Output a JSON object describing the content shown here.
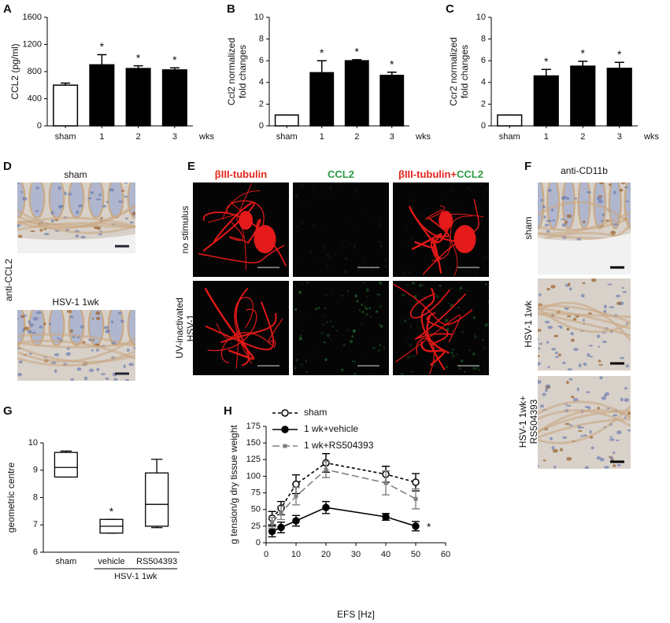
{
  "chart_data": [
    {
      "type": "bar",
      "panel": "A",
      "y_label": [
        "CCL2 (pg/ml)"
      ],
      "categories": [
        "sham",
        "1",
        "2",
        "3"
      ],
      "x_unit": "wks",
      "values": [
        600,
        900,
        845,
        825
      ],
      "errors": [
        30,
        150,
        40,
        30
      ],
      "colors": [
        "#ffffff",
        "#000000",
        "#000000",
        "#000000"
      ],
      "markers": [
        null,
        "*",
        "*",
        "*"
      ],
      "ylim": [
        0,
        1600
      ],
      "yticks": [
        0,
        400,
        800,
        1200,
        1600
      ]
    },
    {
      "type": "bar",
      "panel": "B",
      "y_label": [
        "Ccl2 normalized",
        "fold changes"
      ],
      "categories": [
        "sham",
        "1",
        "2",
        "3"
      ],
      "x_unit": "wks",
      "values": [
        1,
        4.9,
        6.0,
        4.65
      ],
      "errors": [
        0,
        1.1,
        0.1,
        0.3
      ],
      "colors": [
        "#ffffff",
        "#000000",
        "#000000",
        "#000000"
      ],
      "markers": [
        null,
        "*",
        "*",
        "*"
      ],
      "ylim": [
        0,
        10
      ],
      "yticks": [
        0,
        2,
        4,
        6,
        8,
        10
      ]
    },
    {
      "type": "bar",
      "panel": "C",
      "y_label": [
        "Ccr2 normalized",
        "fold changes"
      ],
      "categories": [
        "sham",
        "1",
        "2",
        "3"
      ],
      "x_unit": "wks",
      "values": [
        1,
        4.6,
        5.5,
        5.3
      ],
      "errors": [
        0,
        0.6,
        0.45,
        0.55
      ],
      "colors": [
        "#ffffff",
        "#000000",
        "#000000",
        "#000000"
      ],
      "markers": [
        null,
        "*",
        "*",
        "*"
      ],
      "ylim": [
        0,
        10
      ],
      "yticks": [
        0,
        2,
        4,
        6,
        8,
        10
      ]
    },
    {
      "type": "box",
      "panel": "G",
      "y_label": [
        "geometric centre"
      ],
      "categories": [
        "sham",
        "vehicle",
        "RS504393"
      ],
      "x_group_label": "HSV-1 1wk",
      "min": [
        8.75,
        6.7,
        6.9
      ],
      "q1": [
        8.75,
        6.7,
        6.95
      ],
      "median": [
        9.1,
        6.95,
        7.75
      ],
      "q3": [
        9.65,
        7.2,
        8.9
      ],
      "max": [
        9.7,
        7.2,
        9.4
      ],
      "markers": [
        null,
        "*",
        null
      ],
      "ylim": [
        6,
        10
      ],
      "yticks": [
        6,
        7,
        8,
        9,
        10
      ]
    },
    {
      "type": "line",
      "panel": "H",
      "y_label": [
        "g tension/g dry tissue weight"
      ],
      "x_label": "EFS [Hz]",
      "x": [
        2,
        5,
        10,
        20,
        40,
        50
      ],
      "xlim": [
        0,
        60
      ],
      "xticks": [
        0,
        10,
        20,
        30,
        40,
        50,
        60
      ],
      "ylim": [
        0,
        175
      ],
      "yticks": [
        0,
        25,
        50,
        75,
        100,
        125,
        150,
        175
      ],
      "legend": "upper left",
      "series": [
        {
          "name": "sham",
          "color": "#000000",
          "dash": "dashed",
          "marker": "open-circle",
          "values": [
            37,
            52,
            88,
            120,
            103,
            91
          ],
          "errors": [
            10,
            10,
            14,
            14,
            12,
            13
          ]
        },
        {
          "name": "1 wk+vehicle",
          "color": "#000000",
          "dash": "solid",
          "marker": "filled-circle",
          "values": [
            17,
            23,
            33,
            53,
            39,
            25
          ],
          "errors": [
            8,
            8,
            8,
            9,
            5,
            7
          ],
          "marker_label": "*"
        },
        {
          "name": "1 wk+RS504393",
          "color": "#808080",
          "dash": "long-dashed",
          "marker": "square",
          "values": [
            30,
            45,
            70,
            110,
            90,
            66
          ],
          "errors": [
            8,
            10,
            13,
            12,
            18,
            15
          ]
        }
      ]
    }
  ],
  "image_panels": [
    {
      "panel": "D",
      "titles": [
        "sham",
        "HSV-1 1wk"
      ],
      "side_label": "anti-CCL2"
    },
    {
      "panel": "E",
      "column_headers": [
        [
          {
            "text": "βIII-tubulin",
            "color": "#e3261b"
          }
        ],
        [
          {
            "text": "CCL2",
            "color": "#2d9a46"
          }
        ],
        [
          {
            "text": "βIII-tubulin+",
            "color": "#e3261b"
          },
          {
            "text": "CCL2",
            "color": "#2d9a46"
          }
        ]
      ],
      "row_labels": [
        [
          "no stimulus"
        ],
        [
          "UV-inactivated",
          "HSV-1"
        ]
      ]
    },
    {
      "panel": "F",
      "title": "anti-CD11b",
      "row_labels": [
        [
          "sham"
        ],
        [
          "HSV-1 1wk"
        ],
        [
          "HSV-1 1wk+",
          "RS504393"
        ]
      ]
    }
  ]
}
